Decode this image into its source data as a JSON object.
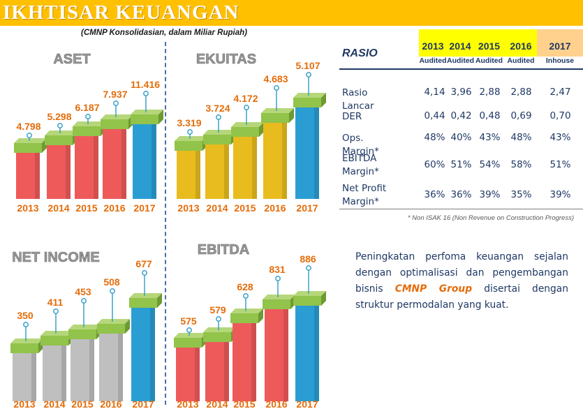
{
  "header": {
    "title": "IKHTISAR KEUANGAN"
  },
  "subtitle": "(CMNP Konsolidasian, dalam Miliar Rupiah)",
  "chart_data": [
    {
      "type": "bar",
      "title": "ASET",
      "categories": [
        "2013",
        "2014",
        "2015",
        "2016",
        "2017"
      ],
      "values": [
        "4.798",
        "5.298",
        "6.187",
        "7.937",
        "11.416"
      ],
      "colors": [
        "#EE5A5A",
        "#EE5A5A",
        "#EE5A5A",
        "#EE5A5A",
        "#2A9ED3"
      ]
    },
    {
      "type": "bar",
      "title": "EKUITAS",
      "categories": [
        "2013",
        "2014",
        "2015",
        "2016",
        "2017"
      ],
      "values": [
        "3.319",
        "3.724",
        "4.172",
        "4.683",
        "5.107"
      ],
      "colors": [
        "#E8BC1E",
        "#E8BC1E",
        "#E8BC1E",
        "#E8BC1E",
        "#2A9ED3"
      ]
    },
    {
      "type": "bar",
      "title": "NET INCOME",
      "categories": [
        "2013",
        "2014",
        "2015",
        "2016",
        "2017"
      ],
      "values": [
        "350",
        "411",
        "453",
        "508",
        "677"
      ],
      "colors": [
        "#BFBFBF",
        "#BFBFBF",
        "#BFBFBF",
        "#BFBFBF",
        "#2A9ED3"
      ]
    },
    {
      "type": "bar",
      "title": "EBITDA",
      "categories": [
        "2013",
        "2014",
        "2015",
        "2016",
        "2017"
      ],
      "values": [
        "575",
        "579",
        "628",
        "831",
        "886"
      ],
      "colors": [
        "#EE5A5A",
        "#EE5A5A",
        "#EE5A5A",
        "#EE5A5A",
        "#2A9ED3"
      ]
    }
  ],
  "ratio_table": {
    "heading": "RASIO",
    "columns": [
      {
        "year": "2013",
        "status": "Audited"
      },
      {
        "year": "2014",
        "status": "Audited"
      },
      {
        "year": "2015",
        "status": "Audited"
      },
      {
        "year": "2016",
        "status": "Audited"
      },
      {
        "year": "2017",
        "status": "Inhouse"
      }
    ],
    "header_colors": {
      "audited": "#FFFF00",
      "inhouse": "#FFD18C"
    },
    "rows": [
      {
        "label": "Rasio Lancar",
        "values": [
          "4,14",
          "3,96",
          "2,88",
          "2,88",
          "2,47"
        ]
      },
      {
        "label": "DER",
        "values": [
          "0,44",
          "0,42",
          "0,48",
          "0,69",
          "0,70"
        ]
      },
      {
        "label": "Ops. Margin*",
        "values": [
          "48%",
          "40%",
          "43%",
          "48%",
          "43%"
        ]
      },
      {
        "label": "EBITDA Margin*",
        "values": [
          "60%",
          "51%",
          "54%",
          "58%",
          "51%"
        ]
      },
      {
        "label": "Net Profit Margin*",
        "values": [
          "36%",
          "36%",
          "39%",
          "35%",
          "39%"
        ]
      }
    ],
    "footnote": "* Non ISAK 16 (Non Revenue on Construction Progress)"
  },
  "paragraph": {
    "before": "Peningkatan perfoma keuangan sejalan dengan optimalisasi dan pengembangan bisnis ",
    "brand": "CMNP Group",
    "after": " disertai dengan struktur permodalan yang kuat."
  },
  "colors": {
    "title_bar": "#FFC000",
    "text": "#1F3864",
    "accent": "#E46C0A",
    "cube": "#92C34A",
    "pin": "#3AA0C8"
  }
}
